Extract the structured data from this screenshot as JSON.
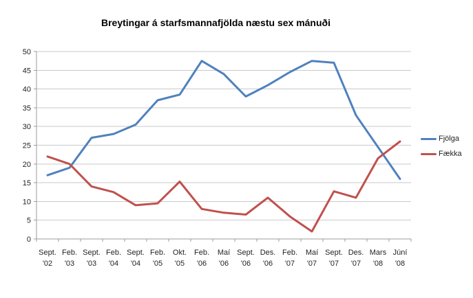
{
  "chart_data": {
    "type": "line",
    "title": "Breytingar á starfsmannafjölda næstu sex mánuði",
    "categories": [
      "Sept. '02",
      "Feb. '03",
      "Sept. '03",
      "Feb. '04",
      "Sept. '04",
      "Feb. '05",
      "Okt. '05",
      "Feb. '06",
      "Maí '06",
      "Sept. '06",
      "Des. '06",
      "Feb. '07",
      "Maí '07",
      "Sept. '07",
      "Des. '07",
      "Mars '08",
      "Júní '08"
    ],
    "series": [
      {
        "name": "Fjölga",
        "color": "#4F81BD",
        "values": [
          17,
          19,
          27,
          28,
          30.5,
          37,
          38.5,
          47.5,
          44,
          38,
          41,
          44.5,
          47.5,
          47,
          33,
          24.5,
          16
        ]
      },
      {
        "name": "Fækka",
        "color": "#C0504D",
        "values": [
          22,
          20,
          14,
          12.5,
          9,
          9.5,
          15.3,
          8,
          7,
          6.5,
          11,
          6,
          2,
          12.7,
          11,
          21.5,
          26
        ]
      }
    ],
    "xlabel": "",
    "ylabel": "",
    "ylim": [
      0,
      50
    ],
    "ytick_step": 5,
    "grid": true,
    "legend_position": "right",
    "gridline_color": "#C9C9C9",
    "axis_color": "#9B9B9B",
    "text_color": "#1F1F1F"
  }
}
